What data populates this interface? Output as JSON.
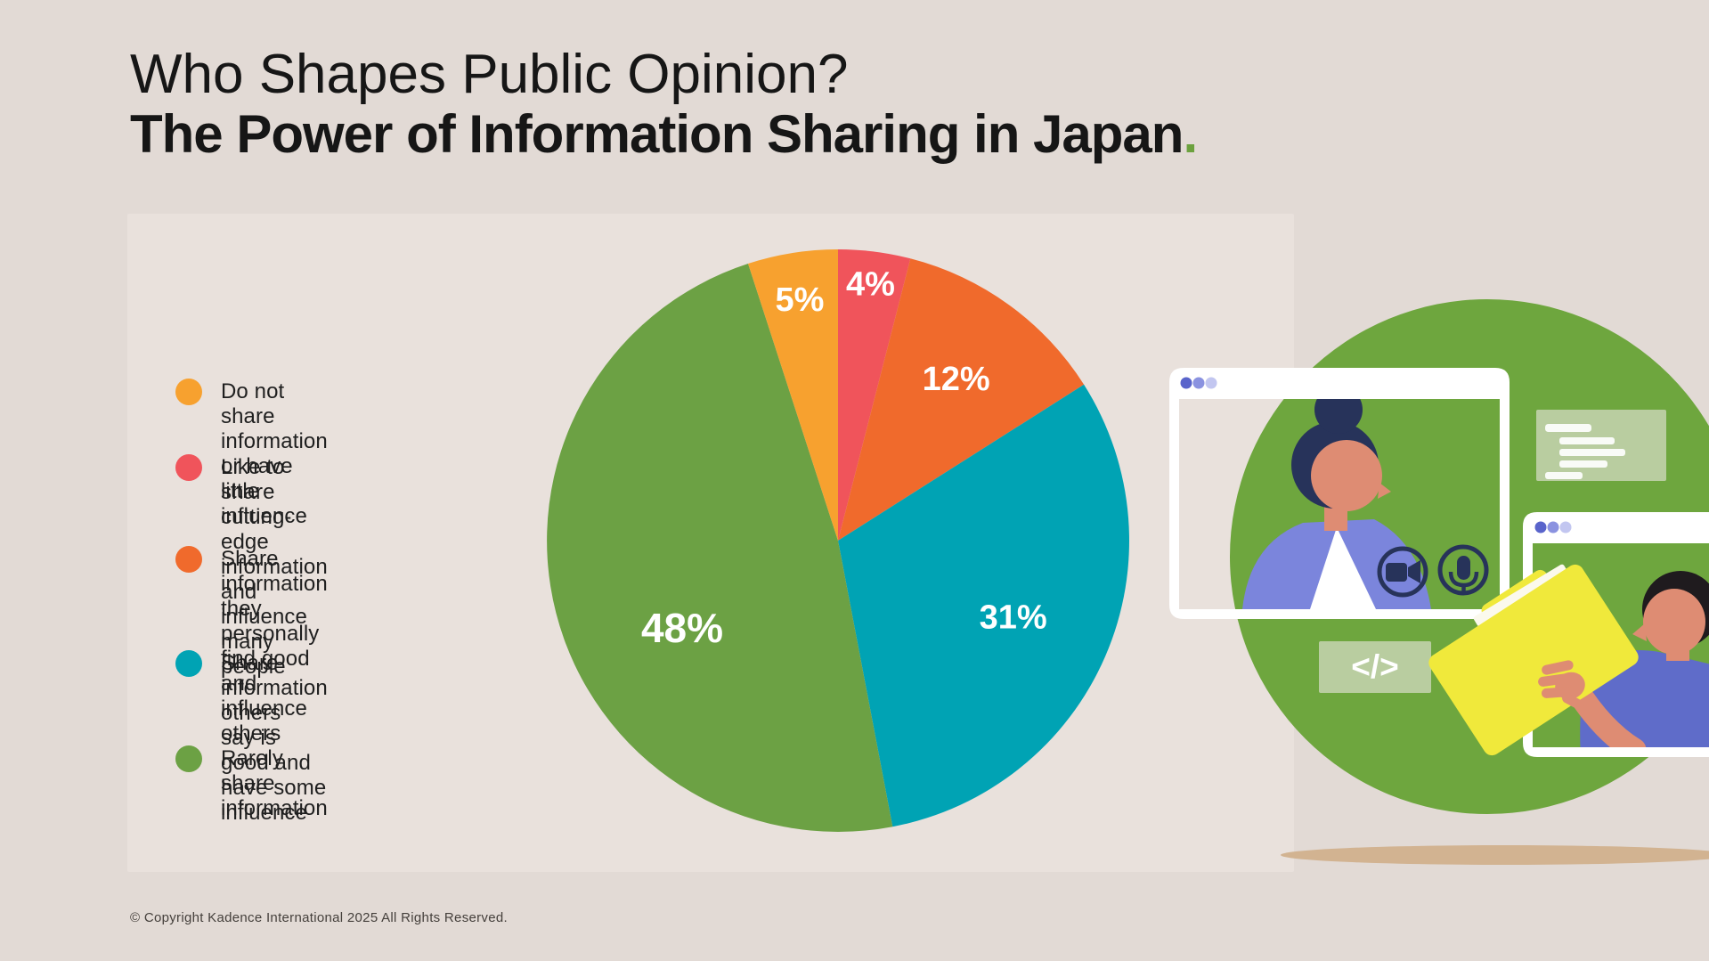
{
  "title": {
    "line1": "Who Shapes Public Opinion?",
    "line2": "The Power of Information Sharing in Japan",
    "period": "."
  },
  "legend": {
    "items": [
      {
        "label": "Do not share information\nor have little influence",
        "color_key": "amber"
      },
      {
        "label": "Like to share cutting-edge\ninformation and influence\nmany people",
        "color_key": "red"
      },
      {
        "label": "Share information they\npersonally find good and\ninfluence others",
        "color_key": "orange"
      },
      {
        "label": "Share information others\nsay is good and have some\ninfluence",
        "color_key": "teal"
      },
      {
        "label": "Rarely share information",
        "color_key": "green"
      }
    ]
  },
  "chart_data": {
    "type": "pie",
    "title": "Who Shapes Public Opinion? The Power of Information Sharing in Japan.",
    "start_angle_deg": 0,
    "direction": "clockwise",
    "unit": "%",
    "slices": [
      {
        "label": "Like to share cutting-edge information and influence many people",
        "value": 4,
        "data_label": "4%",
        "color_key": "red"
      },
      {
        "label": "Share information they personally find good and influence others",
        "value": 12,
        "data_label": "12%",
        "color_key": "orange"
      },
      {
        "label": "Share information others say is good and have some influence",
        "value": 31,
        "data_label": "31%",
        "color_key": "teal"
      },
      {
        "label": "Rarely share information",
        "value": 48,
        "data_label": "48%",
        "color_key": "green"
      },
      {
        "label": "Do not share information or have little influence",
        "value": 5,
        "data_label": "5%",
        "color_key": "amber"
      }
    ],
    "legend_position": "left",
    "grid": false
  },
  "colors": {
    "background": "#E2DAD5",
    "panel": "#E9E1DC",
    "title_text": "#161616",
    "accent_green": "#6CA13E",
    "pie": {
      "red": "#F0545B",
      "orange": "#F06A2C",
      "teal": "#00A3B4",
      "green": "#6CA144",
      "amber": "#F7A12F"
    },
    "illustration": {
      "circle_green": "#6EA63E",
      "navy": "#27335A",
      "skin": "#DE8C73",
      "periwinkle": "#7B85DC",
      "indigo": "#5F6CC9",
      "yellow": "#F0E93B",
      "paper": "#FBF9ED",
      "tan_shadow": "#D2B391",
      "panel_green": "#B9CDA0",
      "black_hair": "#1F1B1E",
      "white": "#FFFFFF",
      "dot1": "#5964CB",
      "dot2": "#8A92E0",
      "dot3": "#C2C6F0"
    }
  },
  "illustration": {
    "scene": "online-video-call-illustration",
    "code_glyph": "</>",
    "icons": [
      "browser-window-icon",
      "video-camera-icon",
      "microphone-icon",
      "chat-lines-icon",
      "code-icon",
      "folder-icon"
    ]
  },
  "footer": {
    "copyright": "© Copyright Kadence International 2025 All Rights Reserved."
  }
}
